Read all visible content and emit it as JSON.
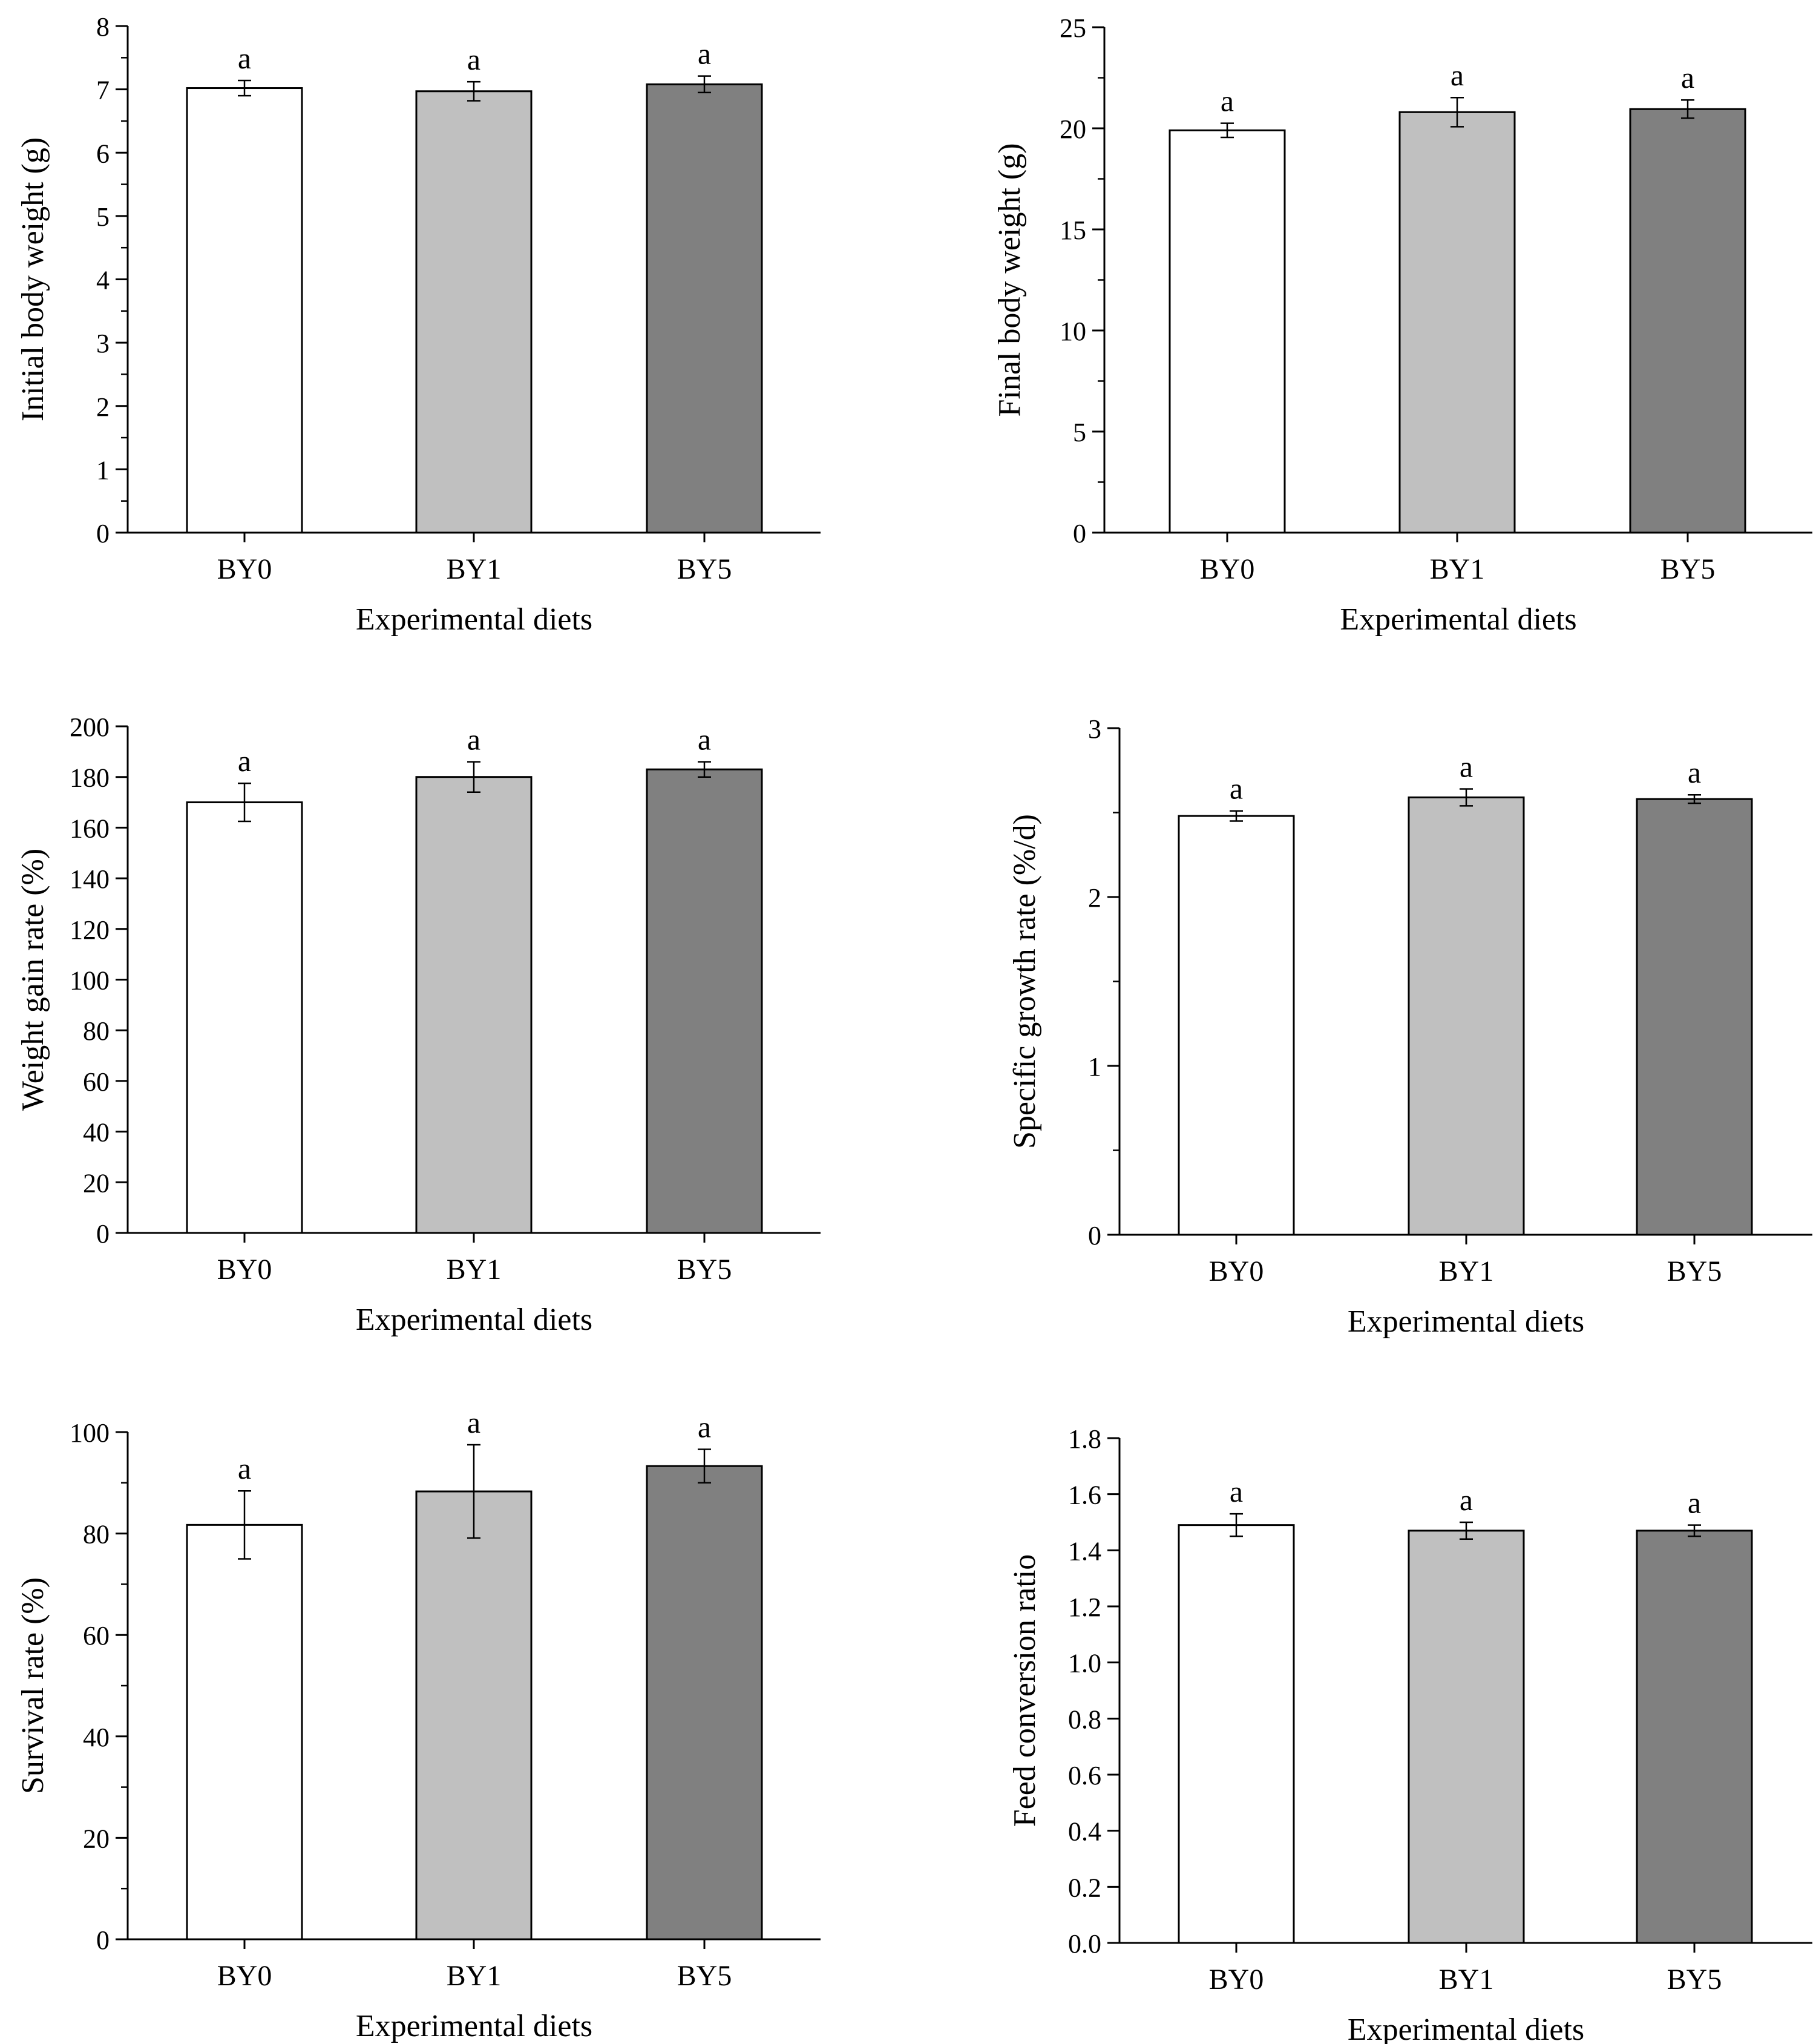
{
  "figure": {
    "bar_fills": [
      "#ffffff",
      "#c0c0c0",
      "#808080"
    ],
    "axis_color": "#000000"
  },
  "chart_data": [
    {
      "type": "bar",
      "categories": [
        "BY0",
        "BY1",
        "BY5"
      ],
      "values": [
        7.02,
        6.97,
        7.08
      ],
      "errors": [
        0.12,
        0.15,
        0.13
      ],
      "significance": [
        "a",
        "a",
        "a"
      ],
      "title": "",
      "xlabel": "Experimental diets",
      "ylabel": "Initial body weight (g)",
      "ylim": [
        0,
        8
      ],
      "yticks": [
        0,
        1,
        2,
        3,
        4,
        5,
        6,
        7,
        8
      ],
      "ytick_labels": [
        "0",
        "1",
        "2",
        "3",
        "4",
        "5",
        "6",
        "7",
        "8"
      ],
      "minor_ticks": true,
      "grid": false
    },
    {
      "type": "bar",
      "categories": [
        "BY0",
        "BY1",
        "BY5"
      ],
      "values": [
        19.9,
        20.8,
        20.95
      ],
      "errors": [
        0.35,
        0.72,
        0.45
      ],
      "significance": [
        "a",
        "a",
        "a"
      ],
      "title": "",
      "xlabel": "Experimental diets",
      "ylabel": "Final body weight (g)",
      "ylim": [
        0,
        25
      ],
      "yticks": [
        0,
        5,
        10,
        15,
        20,
        25
      ],
      "ytick_labels": [
        "0",
        "5",
        "10",
        "15",
        "20",
        "25"
      ],
      "minor_ticks": true,
      "grid": false
    },
    {
      "type": "bar",
      "categories": [
        "BY0",
        "BY1",
        "BY5"
      ],
      "values": [
        170,
        180,
        183
      ],
      "errors": [
        7.5,
        6,
        3
      ],
      "significance": [
        "a",
        "a",
        "a"
      ],
      "title": "",
      "xlabel": "Experimental diets",
      "ylabel": "Weight gain rate (%)",
      "ylim": [
        0,
        200
      ],
      "yticks": [
        0,
        20,
        40,
        60,
        80,
        100,
        120,
        140,
        160,
        180,
        200
      ],
      "ytick_labels": [
        "0",
        "20",
        "40",
        "60",
        "80",
        "100",
        "120",
        "140",
        "160",
        "180",
        "200"
      ],
      "minor_ticks": false,
      "grid": false
    },
    {
      "type": "bar",
      "categories": [
        "BY0",
        "BY1",
        "BY5"
      ],
      "values": [
        2.48,
        2.59,
        2.58
      ],
      "errors": [
        0.03,
        0.05,
        0.025
      ],
      "significance": [
        "a",
        "a",
        "a"
      ],
      "title": "",
      "xlabel": "Experimental diets",
      "ylabel": "Specific growth rate (%/d)",
      "ylim": [
        0,
        3
      ],
      "yticks": [
        0,
        1,
        2,
        3
      ],
      "ytick_labels": [
        "0",
        "1",
        "2",
        "3"
      ],
      "minor_ticks": true,
      "grid": false
    },
    {
      "type": "bar",
      "categories": [
        "BY0",
        "BY1",
        "BY5"
      ],
      "values": [
        81.7,
        88.3,
        93.3
      ],
      "errors": [
        6.7,
        9.2,
        3.3
      ],
      "significance": [
        "a",
        "a",
        "a"
      ],
      "title": "",
      "xlabel": "Experimental diets",
      "ylabel": "Survival rate (%)",
      "ylim": [
        0,
        100
      ],
      "yticks": [
        0,
        20,
        40,
        60,
        80,
        100
      ],
      "ytick_labels": [
        "0",
        "20",
        "40",
        "60",
        "80",
        "100"
      ],
      "minor_ticks": true,
      "grid": false
    },
    {
      "type": "bar",
      "categories": [
        "BY0",
        "BY1",
        "BY5"
      ],
      "values": [
        1.49,
        1.47,
        1.47
      ],
      "errors": [
        0.04,
        0.03,
        0.02
      ],
      "significance": [
        "a",
        "a",
        "a"
      ],
      "title": "",
      "xlabel": "Experimental diets",
      "ylabel": "Feed conversion ratio",
      "ylim": [
        0,
        1.8
      ],
      "yticks": [
        0,
        0.2,
        0.4,
        0.6,
        0.8,
        1.0,
        1.2,
        1.4,
        1.6,
        1.8
      ],
      "ytick_labels": [
        "0.0",
        "0.2",
        "0.4",
        "0.6",
        "0.8",
        "1.0",
        "1.2",
        "1.4",
        "1.6",
        "1.8"
      ],
      "minor_ticks": false,
      "grid": false
    }
  ]
}
